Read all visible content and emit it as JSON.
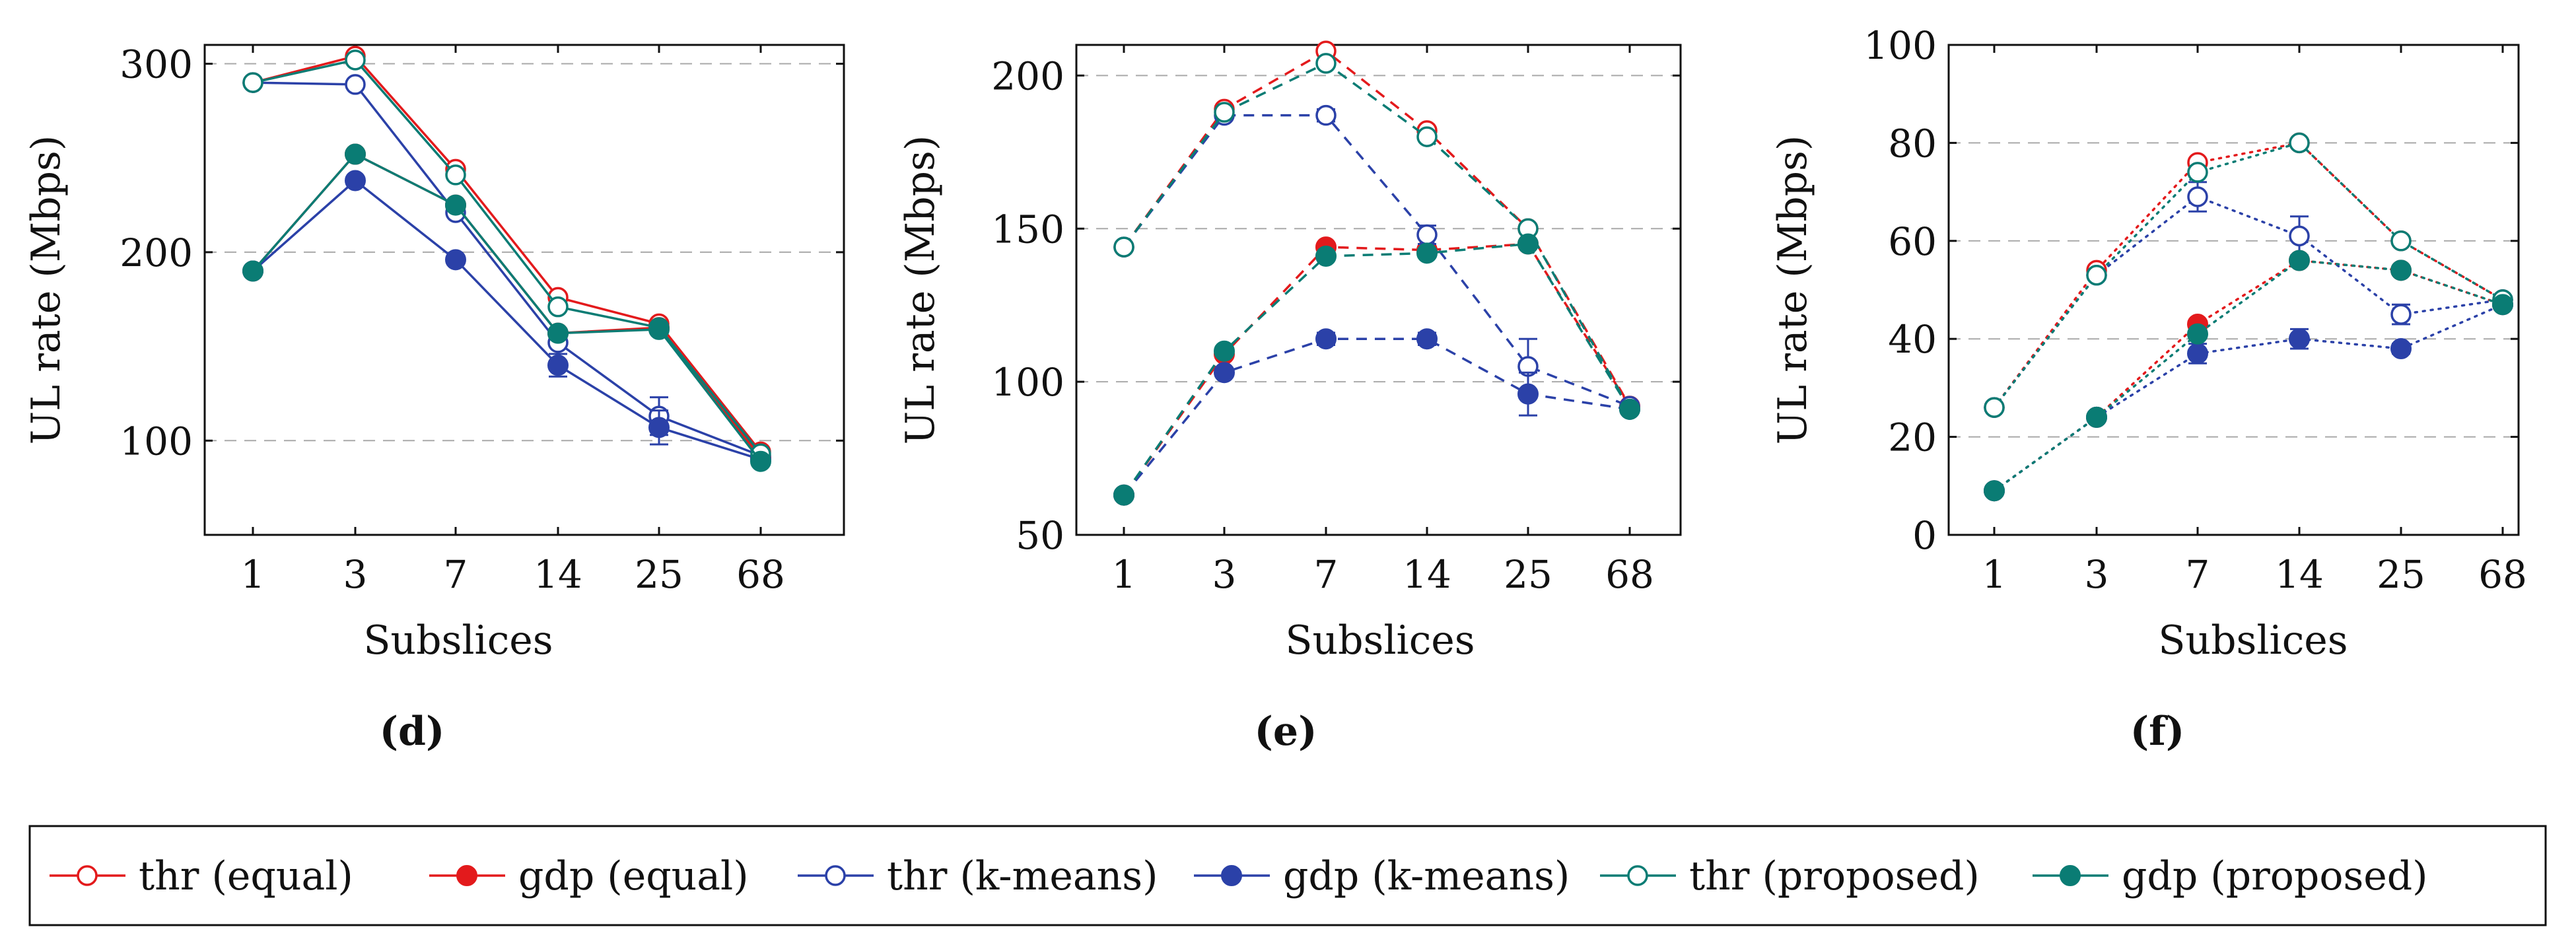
{
  "colors": {
    "equal": "#e31a1c",
    "kmeans": "#2b41a8",
    "proposed": "#0a7c74",
    "axis": "#111111",
    "grid": "#a9a9a9"
  },
  "legend": {
    "entries": [
      {
        "label": "thr (equal)",
        "series": "thr_equal"
      },
      {
        "label": "gdp (equal)",
        "series": "gdp_equal"
      },
      {
        "label": "thr (k-means)",
        "series": "thr_kmeans"
      },
      {
        "label": "gdp (k-means)",
        "series": "gdp_kmeans"
      },
      {
        "label": "thr (proposed)",
        "series": "thr_proposed"
      },
      {
        "label": "gdp (proposed)",
        "series": "gdp_proposed"
      }
    ]
  },
  "chart_data": [
    {
      "type": "line",
      "panel_label": "(d)",
      "xlabel": "Subslices",
      "ylabel": "UL rate (Mbps)",
      "categories": [
        "1",
        "3",
        "7",
        "14",
        "25",
        "68"
      ],
      "ylim": [
        50,
        310
      ],
      "yticks": [
        100,
        200,
        300
      ],
      "line_style": "solid",
      "grid": "horizontal dashed",
      "series": [
        {
          "key": "thr_equal",
          "name": "thr (equal)",
          "values": [
            290,
            304,
            244,
            176,
            162,
            94
          ],
          "err": [
            0,
            0,
            0,
            0,
            0,
            0
          ]
        },
        {
          "key": "gdp_equal",
          "name": "gdp (equal)",
          "values": [
            190,
            252,
            225,
            157,
            160,
            91
          ],
          "err": [
            0,
            0,
            0,
            0,
            0,
            0
          ]
        },
        {
          "key": "thr_kmeans",
          "name": "thr (k-means)",
          "values": [
            290,
            289,
            221,
            152,
            113,
            92
          ],
          "err": [
            0,
            0,
            0,
            0,
            10,
            0
          ]
        },
        {
          "key": "gdp_kmeans",
          "name": "gdp (k-means)",
          "values": [
            190,
            238,
            196,
            140,
            107,
            90
          ],
          "err": [
            0,
            0,
            0,
            6,
            9,
            0
          ]
        },
        {
          "key": "thr_proposed",
          "name": "thr (proposed)",
          "values": [
            290,
            302,
            241,
            171,
            160,
            93
          ],
          "err": [
            0,
            0,
            0,
            0,
            0,
            0
          ]
        },
        {
          "key": "gdp_proposed",
          "name": "gdp (proposed)",
          "values": [
            190,
            252,
            225,
            157,
            159,
            89
          ],
          "err": [
            0,
            0,
            0,
            0,
            0,
            0
          ]
        }
      ]
    },
    {
      "type": "line",
      "panel_label": "(e)",
      "xlabel": "Subslices",
      "ylabel": "UL rate (Mbps)",
      "categories": [
        "1",
        "3",
        "7",
        "14",
        "25",
        "68"
      ],
      "ylim": [
        50,
        210
      ],
      "yticks": [
        50,
        100,
        150,
        200
      ],
      "line_style": "dashed",
      "grid": "horizontal dashed",
      "series": [
        {
          "key": "thr_equal",
          "name": "thr (equal)",
          "values": [
            144,
            189,
            208,
            182,
            150,
            92
          ],
          "err": [
            0,
            0,
            0,
            0,
            0,
            0
          ]
        },
        {
          "key": "gdp_equal",
          "name": "gdp (equal)",
          "values": [
            63,
            109,
            144,
            143,
            145,
            92
          ],
          "err": [
            0,
            0,
            0,
            0,
            0,
            0
          ]
        },
        {
          "key": "thr_kmeans",
          "name": "thr (k-means)",
          "values": [
            144,
            187,
            187,
            148,
            105,
            92
          ],
          "err": [
            0,
            0,
            2,
            3,
            9,
            0
          ]
        },
        {
          "key": "gdp_kmeans",
          "name": "gdp (k-means)",
          "values": [
            63,
            103,
            114,
            114,
            96,
            91
          ],
          "err": [
            0,
            0,
            2,
            2,
            7,
            0
          ]
        },
        {
          "key": "thr_proposed",
          "name": "thr (proposed)",
          "values": [
            144,
            188,
            204,
            180,
            150,
            91
          ],
          "err": [
            0,
            0,
            0,
            0,
            0,
            0
          ]
        },
        {
          "key": "gdp_proposed",
          "name": "gdp (proposed)",
          "values": [
            63,
            110,
            141,
            142,
            145,
            91
          ],
          "err": [
            0,
            0,
            0,
            0,
            0,
            0
          ]
        }
      ]
    },
    {
      "type": "line",
      "panel_label": "(f)",
      "xlabel": "Subslices",
      "ylabel": "UL rate (Mbps)",
      "categories": [
        "1",
        "3",
        "7",
        "14",
        "25",
        "68"
      ],
      "ylim": [
        0,
        100
      ],
      "yticks": [
        0,
        20,
        40,
        60,
        80,
        100
      ],
      "line_style": "dotted",
      "grid": "horizontal dashed",
      "series": [
        {
          "key": "thr_equal",
          "name": "thr (equal)",
          "values": [
            26,
            54,
            76,
            80,
            60,
            48
          ],
          "err": [
            0,
            0,
            0,
            0,
            0,
            0
          ]
        },
        {
          "key": "gdp_equal",
          "name": "gdp (equal)",
          "values": [
            9,
            24,
            43,
            56,
            54,
            47
          ],
          "err": [
            0,
            0,
            0,
            0,
            0,
            0
          ]
        },
        {
          "key": "thr_kmeans",
          "name": "thr (k-means)",
          "values": [
            26,
            53,
            69,
            61,
            45,
            48
          ],
          "err": [
            0,
            0,
            3,
            4,
            2,
            0
          ]
        },
        {
          "key": "gdp_kmeans",
          "name": "gdp (k-means)",
          "values": [
            9,
            24,
            37,
            40,
            38,
            47
          ],
          "err": [
            0,
            0,
            2,
            2,
            1,
            0
          ]
        },
        {
          "key": "thr_proposed",
          "name": "thr (proposed)",
          "values": [
            26,
            53,
            74,
            80,
            60,
            48
          ],
          "err": [
            0,
            0,
            0,
            0,
            0,
            0
          ]
        },
        {
          "key": "gdp_proposed",
          "name": "gdp (proposed)",
          "values": [
            9,
            24,
            41,
            56,
            54,
            47
          ],
          "err": [
            0,
            0,
            0,
            0,
            0,
            0
          ]
        }
      ]
    }
  ]
}
